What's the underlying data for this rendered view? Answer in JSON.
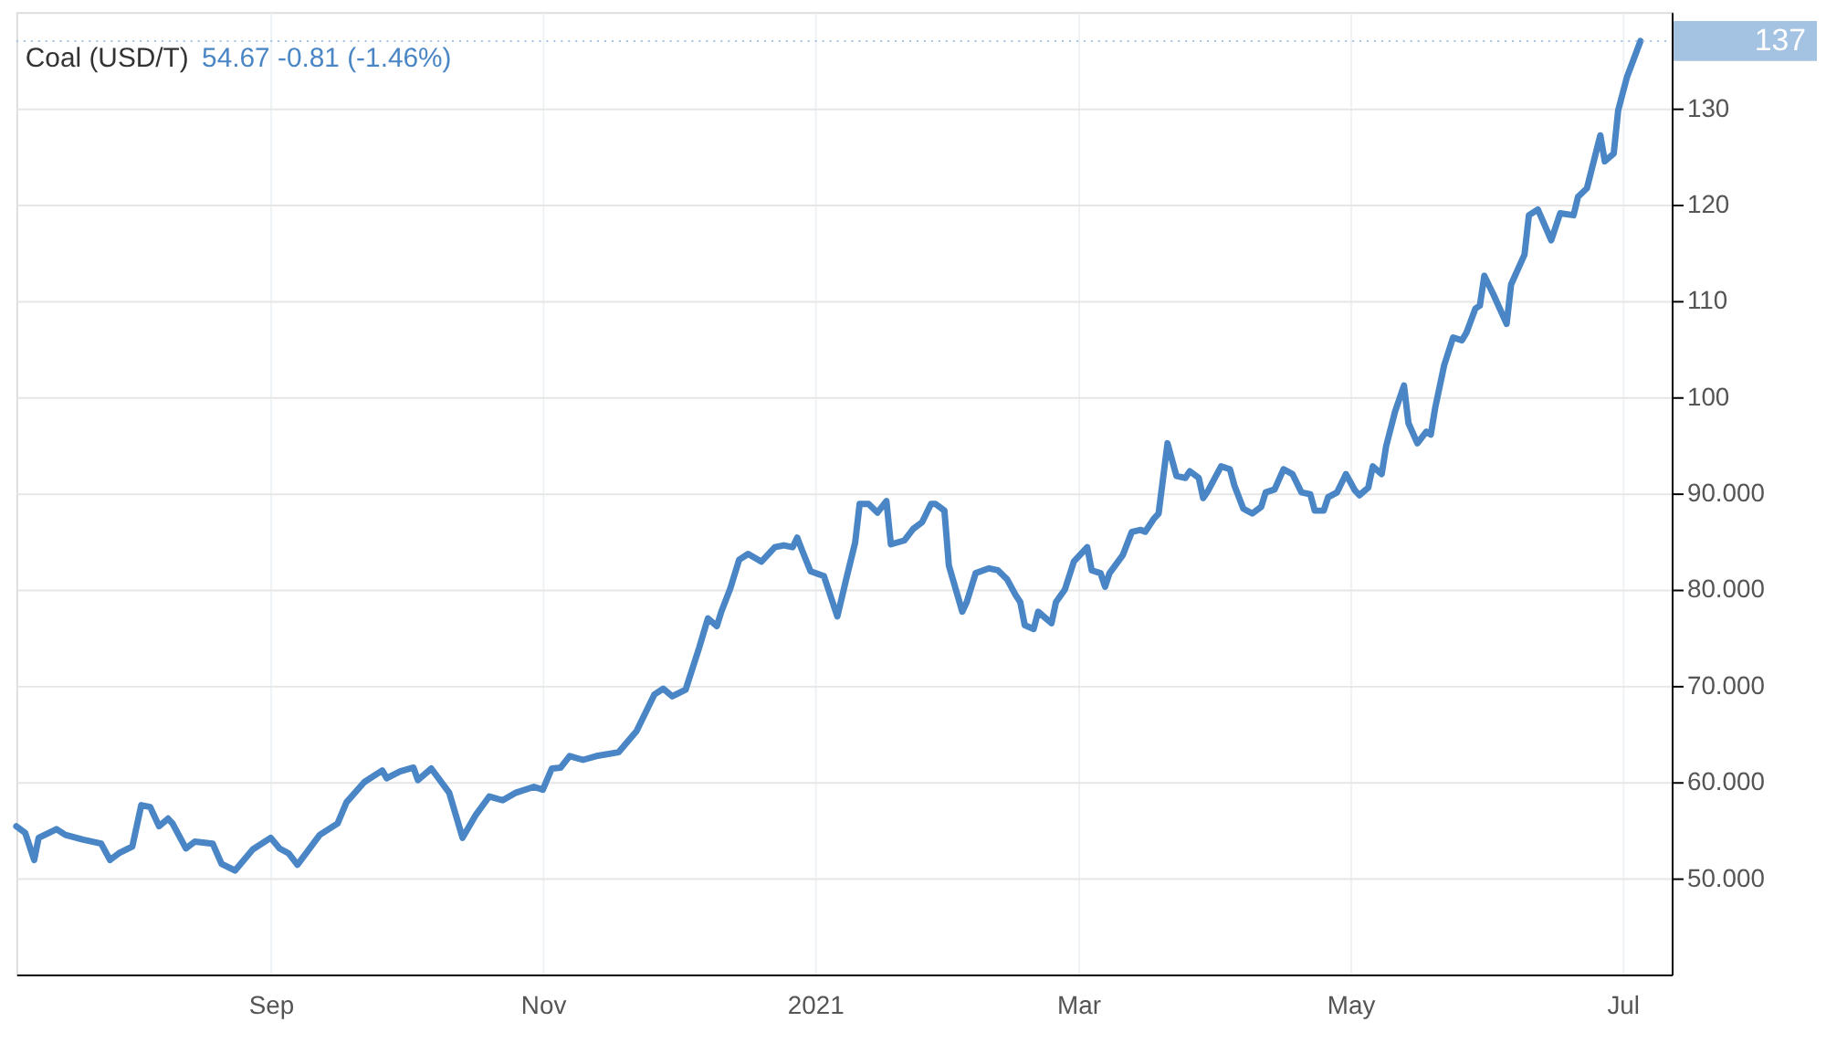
{
  "chart_data": {
    "type": "line",
    "title": "Coal (USD/T)",
    "subtitle": "54.67  -0.81 (-1.46%)",
    "x": [
      "2020-07-06",
      "2020-07-08",
      "2020-07-10",
      "2020-07-11",
      "2020-07-15",
      "2020-07-17",
      "2020-07-21",
      "2020-07-25",
      "2020-07-27",
      "2020-07-29",
      "2020-08-01",
      "2020-08-03",
      "2020-08-05",
      "2020-08-07",
      "2020-08-09",
      "2020-08-10",
      "2020-08-13",
      "2020-08-15",
      "2020-08-19",
      "2020-08-21",
      "2020-08-24",
      "2020-08-28",
      "2020-09-01",
      "2020-09-03",
      "2020-09-05",
      "2020-09-07",
      "2020-09-12",
      "2020-09-16",
      "2020-09-18",
      "2020-09-22",
      "2020-09-26",
      "2020-09-27",
      "2020-09-30",
      "2020-10-03",
      "2020-10-04",
      "2020-10-07",
      "2020-10-11",
      "2020-10-14",
      "2020-10-17",
      "2020-10-20",
      "2020-10-23",
      "2020-10-26",
      "2020-10-30",
      "2020-11-01",
      "2020-11-03",
      "2020-11-05",
      "2020-11-07",
      "2020-11-10",
      "2020-11-13",
      "2020-11-18",
      "2020-11-22",
      "2020-11-26",
      "2020-11-28",
      "2020-11-30",
      "2020-12-03",
      "2020-12-06",
      "2020-12-08",
      "2020-12-10",
      "2020-12-11",
      "2020-12-13",
      "2020-12-15",
      "2020-12-17",
      "2020-12-20",
      "2020-12-23",
      "2020-12-25",
      "2020-12-27",
      "2020-12-28",
      "2020-12-29",
      "2020-12-31",
      "2021-01-03",
      "2021-01-06",
      "2021-01-08",
      "2021-01-10",
      "2021-01-11",
      "2021-01-13",
      "2021-01-15",
      "2021-01-17",
      "2021-01-18",
      "2021-01-21",
      "2021-01-23",
      "2021-01-25",
      "2021-01-27",
      "2021-01-28",
      "2021-01-30",
      "2021-01-31",
      "2021-02-03",
      "2021-02-04",
      "2021-02-06",
      "2021-02-09",
      "2021-02-11",
      "2021-02-13",
      "2021-02-15",
      "2021-02-16",
      "2021-02-17",
      "2021-02-19",
      "2021-02-20",
      "2021-02-23",
      "2021-02-24",
      "2021-02-26",
      "2021-02-28",
      "2021-03-03",
      "2021-03-04",
      "2021-03-06",
      "2021-03-07",
      "2021-03-08",
      "2021-03-11",
      "2021-03-13",
      "2021-03-15",
      "2021-03-16",
      "2021-03-18",
      "2021-03-19",
      "2021-03-21",
      "2021-03-23",
      "2021-03-25",
      "2021-03-26",
      "2021-03-28",
      "2021-03-29",
      "2021-03-30",
      "2021-04-02",
      "2021-04-04",
      "2021-04-05",
      "2021-04-07",
      "2021-04-09",
      "2021-04-11",
      "2021-04-12",
      "2021-04-14",
      "2021-04-16",
      "2021-04-18",
      "2021-04-20",
      "2021-04-22",
      "2021-04-23",
      "2021-04-25",
      "2021-04-26",
      "2021-04-28",
      "2021-04-30",
      "2021-05-02",
      "2021-05-03",
      "2021-05-05",
      "2021-05-06",
      "2021-05-08",
      "2021-05-09",
      "2021-05-11",
      "2021-05-13",
      "2021-05-14",
      "2021-05-16",
      "2021-05-18",
      "2021-05-19",
      "2021-05-20",
      "2021-05-22",
      "2021-05-24",
      "2021-05-26",
      "2021-05-27",
      "2021-05-29",
      "2021-05-30",
      "2021-05-31",
      "2021-06-02",
      "2021-06-05",
      "2021-06-06",
      "2021-06-09",
      "2021-06-10",
      "2021-06-12",
      "2021-06-15",
      "2021-06-17",
      "2021-06-20",
      "2021-06-21",
      "2021-06-23",
      "2021-06-26",
      "2021-06-27",
      "2021-06-29",
      "2021-06-30",
      "2021-07-02",
      "2021-07-05"
    ],
    "series": [
      {
        "color": "#4a86c5",
        "values": [
          55.4,
          54.7,
          51.9,
          54.2,
          55.1,
          54.5,
          54.0,
          53.6,
          51.9,
          52.6,
          53.3,
          57.6,
          57.4,
          55.4,
          56.2,
          55.7,
          53.1,
          53.8,
          53.6,
          51.5,
          50.8,
          53.0,
          54.2,
          53.1,
          52.6,
          51.4,
          54.5,
          55.7,
          57.9,
          60.0,
          61.2,
          60.4,
          61.1,
          61.5,
          60.2,
          61.4,
          58.9,
          54.2,
          56.6,
          58.5,
          58.1,
          58.9,
          59.5,
          59.2,
          61.4,
          61.5,
          62.7,
          62.3,
          62.7,
          63.1,
          65.3,
          69.1,
          69.7,
          68.9,
          69.6,
          73.9,
          77.0,
          76.2,
          77.7,
          80.1,
          83.1,
          83.7,
          82.9,
          84.4,
          84.6,
          84.4,
          85.4,
          84.2,
          81.9,
          81.4,
          77.2,
          81.1,
          84.9,
          88.9,
          88.9,
          88.0,
          89.2,
          84.7,
          85.1,
          86.3,
          87.0,
          88.9,
          88.9,
          88.2,
          82.5,
          77.7,
          78.7,
          81.7,
          82.2,
          82.0,
          81.1,
          79.4,
          78.7,
          76.3,
          75.9,
          77.7,
          76.5,
          78.7,
          80.0,
          82.9,
          84.4,
          82.0,
          81.7,
          80.3,
          81.7,
          83.6,
          86.0,
          86.2,
          86.0,
          87.4,
          87.9,
          95.2,
          91.8,
          91.6,
          92.3,
          91.6,
          89.5,
          90.2,
          92.8,
          92.5,
          90.8,
          88.4,
          87.9,
          88.6,
          90.1,
          90.4,
          92.5,
          92.0,
          90.1,
          89.9,
          88.2,
          88.2,
          89.6,
          90.1,
          92.0,
          90.3,
          89.8,
          90.6,
          92.8,
          92.0,
          94.9,
          98.5,
          101.2,
          97.3,
          95.2,
          96.4,
          96.1,
          98.9,
          103.3,
          106.2,
          105.9,
          106.7,
          109.2,
          109.5,
          112.6,
          110.7,
          107.6,
          111.7,
          114.8,
          118.9,
          119.5,
          116.3,
          119.1,
          118.9,
          120.8,
          121.7,
          127.2,
          124.5,
          125.3,
          129.8,
          133.3,
          137
        ]
      }
    ],
    "xlim": [
      "2020-07-06",
      "2021-07-12"
    ],
    "xticks": [
      {
        "value": "2020-09-01",
        "label": "Sep"
      },
      {
        "value": "2020-11-01",
        "label": "Nov"
      },
      {
        "value": "2021-01-01",
        "label": "2021"
      },
      {
        "value": "2021-03-01",
        "label": "Mar"
      },
      {
        "value": "2021-05-01",
        "label": "May"
      },
      {
        "value": "2021-07-01",
        "label": "Jul"
      }
    ],
    "ylim": [
      40,
      140
    ],
    "yticks": [
      {
        "value": 50,
        "label": "50.000"
      },
      {
        "value": 60,
        "label": "60.000"
      },
      {
        "value": 70,
        "label": "70.000"
      },
      {
        "value": 80,
        "label": "80.000"
      },
      {
        "value": 90,
        "label": "90.000"
      },
      {
        "value": 100,
        "label": "100"
      },
      {
        "value": 110,
        "label": "110"
      },
      {
        "value": 120,
        "label": "120"
      },
      {
        "value": 130,
        "label": "130"
      }
    ],
    "ref_lines": [
      {
        "axis": "y",
        "value": 137,
        "label": "137",
        "color": "#a4c2e2",
        "line_style": "dotted"
      }
    ],
    "grid": true,
    "line_style": "solid"
  }
}
